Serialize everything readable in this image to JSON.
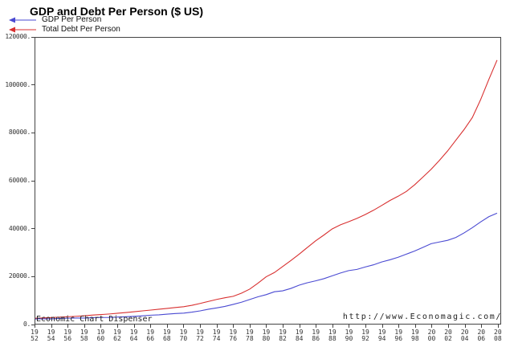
{
  "title": "GDP and Debt Per Person ($ US)",
  "legend": [
    {
      "label": "GDP Per Person",
      "color": "#4a4ad2"
    },
    {
      "label": "Total Debt Per Person",
      "color": "#d83030"
    }
  ],
  "watermarks": {
    "left": "Economic Chart Dispenser",
    "right": "http://www.Economagic.com/"
  },
  "chart_data": {
    "type": "line",
    "title": "GDP and Debt Per Person ($ US)",
    "xlabel": "",
    "ylabel": "",
    "xlim": [
      1952,
      2008.4
    ],
    "ylim": [
      0,
      120000
    ],
    "grid": false,
    "legend_position": "top-left",
    "yticks": [
      0,
      20000,
      40000,
      60000,
      80000,
      100000,
      120000
    ],
    "ytick_labels": [
      "0.",
      "20000.",
      "40000.",
      "60000.",
      "80000.",
      "100000.",
      "120000."
    ],
    "xticks": [
      1952,
      1954,
      1956,
      1958,
      1960,
      1962,
      1964,
      1966,
      1968,
      1970,
      1972,
      1974,
      1976,
      1978,
      1980,
      1982,
      1984,
      1986,
      1988,
      1990,
      1992,
      1994,
      1996,
      1998,
      2000,
      2002,
      2004,
      2006,
      2008
    ],
    "x": [
      1952,
      1953,
      1954,
      1955,
      1956,
      1957,
      1958,
      1959,
      1960,
      1961,
      1962,
      1963,
      1964,
      1965,
      1966,
      1967,
      1968,
      1969,
      1970,
      1971,
      1972,
      1973,
      1974,
      1975,
      1976,
      1977,
      1978,
      1979,
      1980,
      1981,
      1982,
      1983,
      1984,
      1985,
      1986,
      1987,
      1988,
      1989,
      1990,
      1991,
      1992,
      1993,
      1994,
      1995,
      1996,
      1997,
      1998,
      1999,
      2000,
      2001,
      2002,
      2003,
      2004,
      2005,
      2006,
      2007,
      2008
    ],
    "series": [
      {
        "name": "GDP Per Person",
        "color": "#4a4ad2",
        "values": [
          2000,
          2080,
          2060,
          2210,
          2300,
          2390,
          2380,
          2550,
          2600,
          2660,
          2800,
          2920,
          3090,
          3310,
          3570,
          3720,
          4010,
          4280,
          4450,
          4870,
          5400,
          6090,
          6650,
          7280,
          8120,
          9020,
          10150,
          11280,
          12200,
          13400,
          13800,
          14800,
          16200,
          17200,
          18000,
          18900,
          20100,
          21300,
          22300,
          22800,
          23800,
          24700,
          25900,
          26800,
          27900,
          29200,
          30500,
          32000,
          33600,
          34300,
          35000,
          36200,
          38100,
          40300,
          42700,
          44900,
          46400
        ]
      },
      {
        "name": "Total Debt Per Person",
        "color": "#d83030",
        "values": [
          2300,
          2430,
          2570,
          2780,
          2960,
          3130,
          3350,
          3650,
          3870,
          4090,
          4390,
          4700,
          5040,
          5390,
          5740,
          6090,
          6450,
          6800,
          7150,
          7750,
          8500,
          9350,
          10200,
          10900,
          11500,
          12800,
          14500,
          17000,
          19700,
          21500,
          24000,
          26500,
          29200,
          32000,
          34800,
          37200,
          39800,
          41500,
          42800,
          44200,
          45800,
          47600,
          49600,
          51700,
          53500,
          55500,
          58300,
          61500,
          64800,
          68500,
          72500,
          77000,
          81500,
          86500,
          94000,
          102500,
          110600
        ]
      }
    ]
  }
}
